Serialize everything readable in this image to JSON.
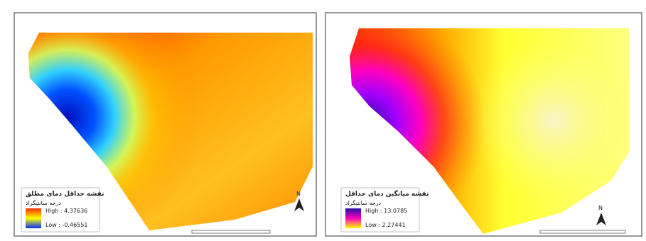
{
  "panels": [
    {
      "title": "نقشه حداقل دمای مطلق",
      "legend_title": "درجه سانتیگراد",
      "high": "High : 4.37636",
      "low": "Low : -0.46551",
      "north": "N"
    },
    {
      "title": "نقشه میانگین دمای حداقل",
      "legend_title": "درجه سانتیگراد",
      "high": "High : 13.0785",
      "low": "Low : 2.27441",
      "north": "N"
    }
  ]
}
